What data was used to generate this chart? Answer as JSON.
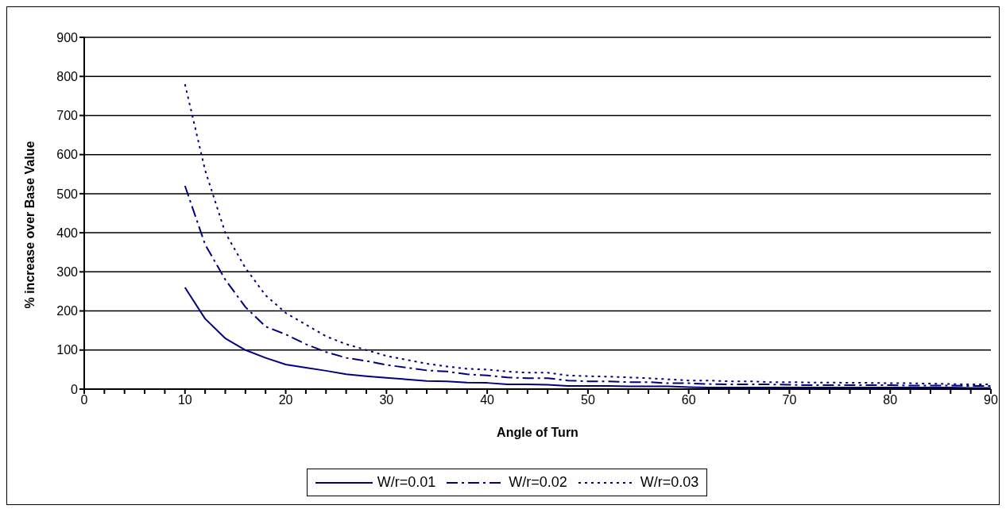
{
  "chart_data": {
    "type": "line",
    "xlabel": "Angle of Turn",
    "ylabel": "% increase over Base Value",
    "x": [
      10,
      12,
      14,
      16,
      18,
      20,
      22,
      24,
      26,
      28,
      30,
      32,
      34,
      36,
      38,
      40,
      42,
      44,
      46,
      48,
      50,
      52,
      54,
      56,
      58,
      60,
      62,
      64,
      66,
      68,
      70,
      72,
      74,
      76,
      78,
      80,
      82,
      84,
      86,
      88,
      90
    ],
    "series": [
      {
        "name": "W/r=0.01",
        "color": "#000080",
        "line_style": "solid",
        "values": [
          260,
          180,
          130,
          100,
          80,
          63,
          55,
          47,
          38,
          33,
          29,
          25,
          21,
          20,
          17,
          16,
          12,
          12,
          11,
          8,
          8,
          8,
          7,
          7,
          7,
          5,
          4,
          4,
          4,
          4,
          4,
          4,
          4,
          4,
          4,
          4,
          4,
          4,
          4,
          3,
          3
        ]
      },
      {
        "name": "W/r=0.02",
        "color": "#000080",
        "line_style": "dashed",
        "values": [
          520,
          370,
          280,
          210,
          160,
          140,
          115,
          95,
          80,
          72,
          62,
          55,
          48,
          45,
          38,
          35,
          30,
          28,
          28,
          22,
          20,
          20,
          18,
          18,
          15,
          15,
          13,
          12,
          12,
          12,
          11,
          10,
          10,
          10,
          10,
          10,
          9,
          9,
          9,
          8,
          8
        ]
      },
      {
        "name": "W/r=0.03",
        "color": "#000080",
        "line_style": "dotted",
        "values": [
          780,
          560,
          400,
          310,
          240,
          195,
          165,
          135,
          115,
          100,
          85,
          75,
          65,
          58,
          52,
          50,
          45,
          42,
          42,
          35,
          33,
          32,
          30,
          28,
          25,
          22,
          22,
          20,
          20,
          18,
          18,
          17,
          17,
          16,
          16,
          15,
          15,
          14,
          13,
          12,
          12
        ]
      }
    ],
    "xlim": [
      0,
      90
    ],
    "xticks": [
      0,
      {
        "value": 2,
        "label": null
      },
      {
        "value": 4,
        "label": null
      },
      {
        "value": 6,
        "label": null
      },
      {
        "value": 8,
        "label": null
      },
      10,
      {
        "value": 12,
        "label": null
      },
      {
        "value": 14,
        "label": null
      },
      {
        "value": 16,
        "label": null
      },
      {
        "value": 18,
        "label": null
      },
      20,
      {
        "value": 22,
        "label": null
      },
      {
        "value": 24,
        "label": null
      },
      {
        "value": 26,
        "label": null
      },
      {
        "value": 28,
        "label": null
      },
      30,
      {
        "value": 32,
        "label": null
      },
      {
        "value": 34,
        "label": null
      },
      {
        "value": 36,
        "label": null
      },
      {
        "value": 38,
        "label": null
      },
      40,
      {
        "value": 42,
        "label": null
      },
      {
        "value": 44,
        "label": null
      },
      {
        "value": 46,
        "label": null
      },
      {
        "value": 48,
        "label": null
      },
      50,
      {
        "value": 52,
        "label": null
      },
      {
        "value": 54,
        "label": null
      },
      {
        "value": 56,
        "label": null
      },
      {
        "value": 58,
        "label": null
      },
      60,
      {
        "value": 62,
        "label": null
      },
      {
        "value": 64,
        "label": null
      },
      {
        "value": 66,
        "label": null
      },
      {
        "value": 68,
        "label": null
      },
      70,
      {
        "value": 72,
        "label": null
      },
      {
        "value": 74,
        "label": null
      },
      {
        "value": 76,
        "label": null
      },
      {
        "value": 78,
        "label": null
      },
      80,
      {
        "value": 82,
        "label": null
      },
      {
        "value": 84,
        "label": null
      },
      {
        "value": 86,
        "label": null
      },
      {
        "value": 88,
        "label": null
      },
      90
    ],
    "ylim": [
      0,
      900
    ],
    "yticks": [
      0,
      100,
      200,
      300,
      400,
      500,
      600,
      700,
      800,
      900
    ],
    "grid": "y",
    "legend": "bottom",
    "marker": "none"
  }
}
